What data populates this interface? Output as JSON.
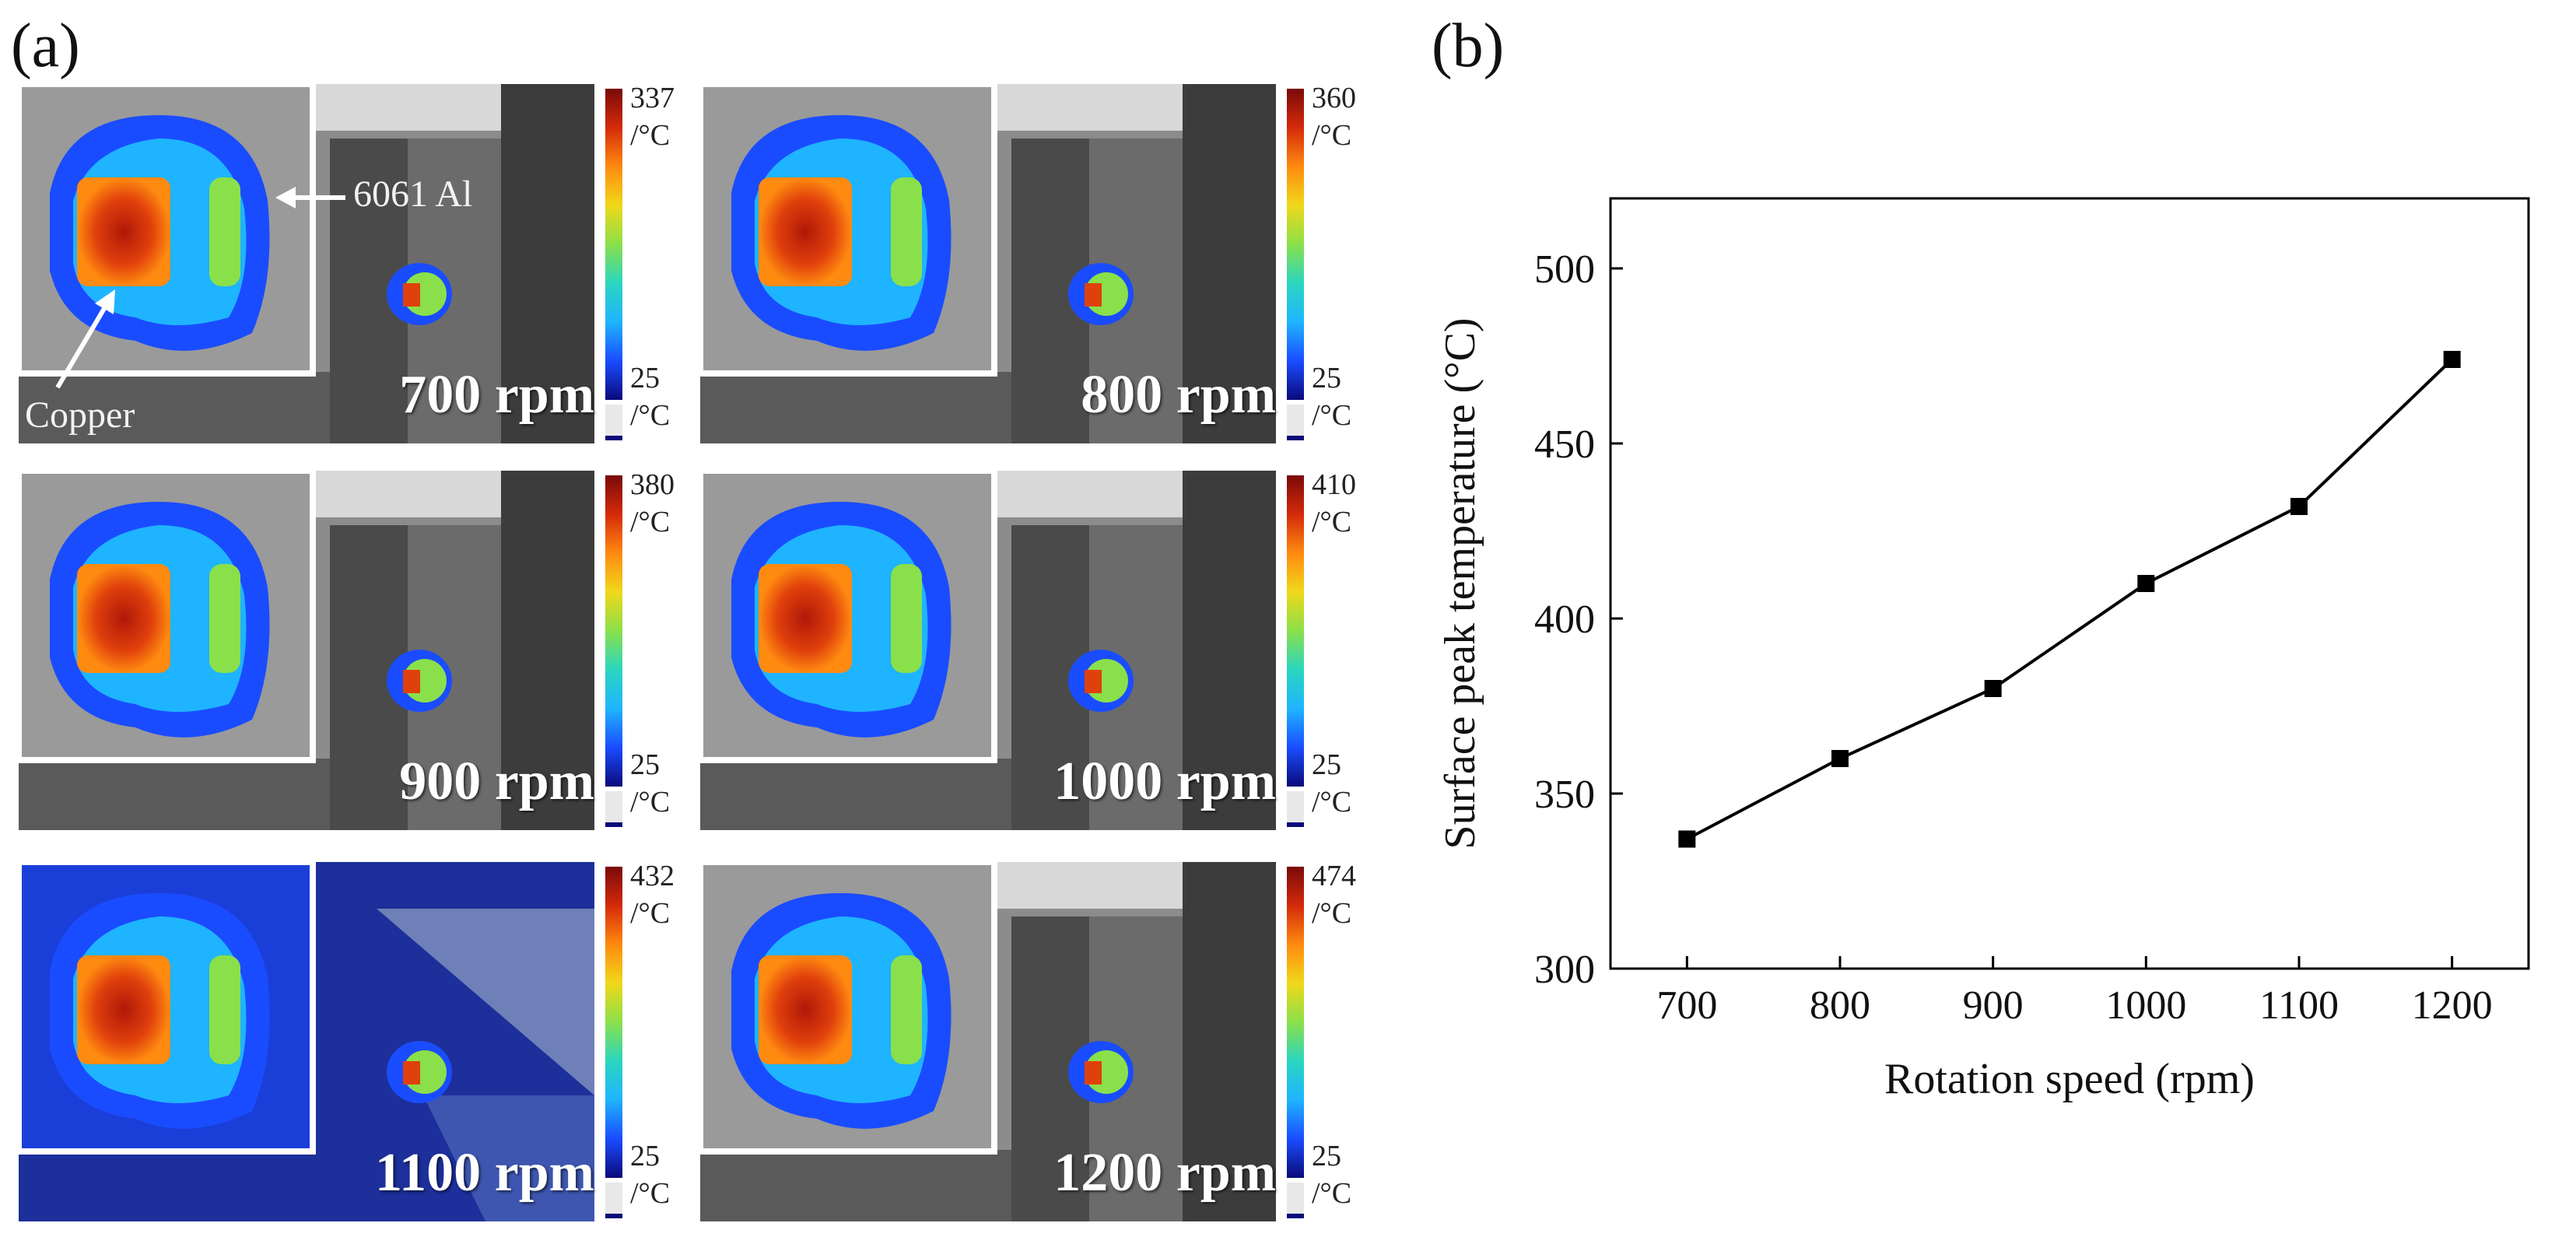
{
  "panel_a_label": "(a)",
  "panel_b_label": "(b)",
  "thermal_images": [
    {
      "speed_label": "700 rpm",
      "max_label": "337",
      "min_label": "25",
      "unit": "/°C"
    },
    {
      "speed_label": "800 rpm",
      "max_label": "360",
      "min_label": "25",
      "unit": "/°C"
    },
    {
      "speed_label": "900 rpm",
      "max_label": "380",
      "min_label": "25",
      "unit": "/°C"
    },
    {
      "speed_label": "1000 rpm",
      "max_label": "410",
      "min_label": "25",
      "unit": "/°C"
    },
    {
      "speed_label": "1100 rpm",
      "max_label": "432",
      "min_label": "25",
      "unit": "/°C"
    },
    {
      "speed_label": "1200 rpm",
      "max_label": "474",
      "min_label": "25",
      "unit": "/°C"
    }
  ],
  "annotations": {
    "aluminium": "6061 Al",
    "copper": "Copper"
  },
  "colorbar_stops": [
    "#0a0a7a",
    "#1a4cff",
    "#1fb4ff",
    "#2ad6c0",
    "#8ae04a",
    "#f0d81a",
    "#ff8a10",
    "#d42a0a",
    "#7a0a0a"
  ],
  "chart_data": {
    "type": "line",
    "xlabel": "Rotation speed (rpm)",
    "ylabel": "Surface peak temperature (°C)",
    "x": [
      700,
      800,
      900,
      1000,
      1100,
      1200
    ],
    "series": [
      {
        "values": [
          337,
          360,
          380,
          410,
          432,
          474
        ]
      }
    ],
    "xlim": [
      650,
      1250
    ],
    "ylim": [
      300,
      520
    ],
    "xticks": [
      "700",
      "800",
      "900",
      "1000",
      "1100",
      "1200"
    ],
    "yticks": [
      "300",
      "350",
      "400",
      "450",
      "500"
    ],
    "marker": "square",
    "line_color": "#000000"
  }
}
